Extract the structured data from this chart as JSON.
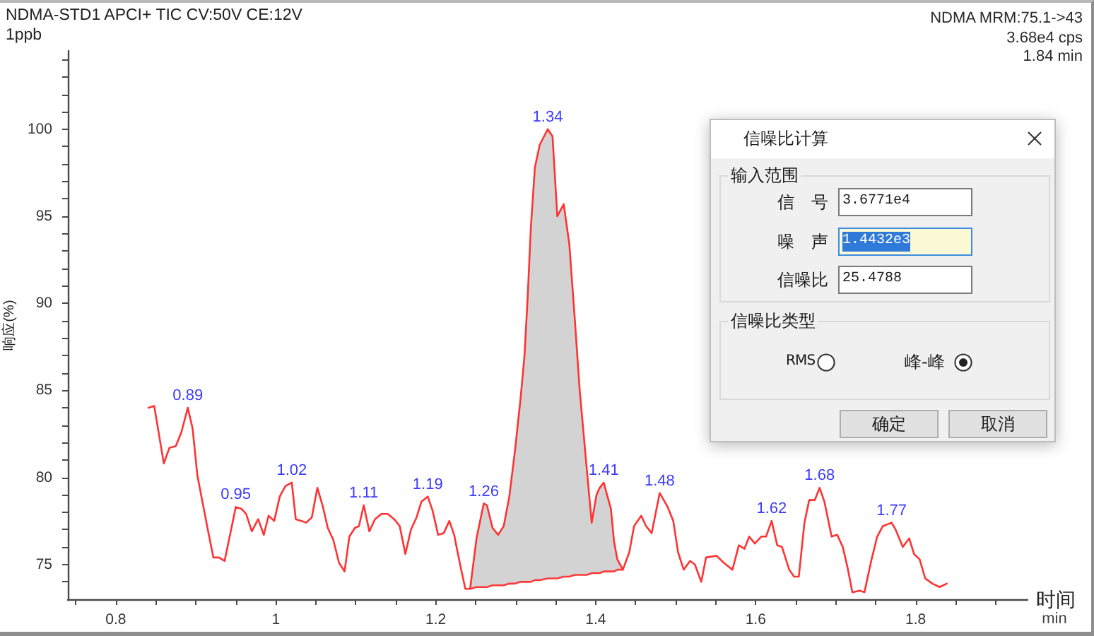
{
  "chart_data": {
    "type": "line",
    "title": "NDMA-STD1 APCI+ TIC CV:50V CE:12V",
    "subtitle": "1ppb",
    "xlabel": "时间",
    "ylabel": "响应(%)",
    "xlim": [
      0.74,
      1.94
    ],
    "ylim": [
      73,
      104.5
    ],
    "xticks": [
      {
        "value": 0.75,
        "label": null
      },
      0.8,
      {
        "value": 0.85,
        "label": null
      },
      {
        "value": 0.9,
        "label": null
      },
      {
        "value": 0.95,
        "label": null
      },
      1,
      {
        "value": 1.05,
        "label": null
      },
      {
        "value": 1.1,
        "label": null
      },
      {
        "value": 1.15,
        "label": null
      },
      1.2,
      {
        "value": 1.25,
        "label": null
      },
      {
        "value": 1.3,
        "label": null
      },
      {
        "value": 1.35,
        "label": null
      },
      1.4,
      {
        "value": 1.45,
        "label": null
      },
      {
        "value": 1.5,
        "label": null
      },
      {
        "value": 1.55,
        "label": null
      },
      1.6,
      {
        "value": 1.65,
        "label": null
      },
      {
        "value": 1.7,
        "label": null
      },
      {
        "value": 1.75,
        "label": null
      },
      1.8,
      {
        "value": 1.85,
        "label": null
      },
      {
        "value": 1.9,
        "label": null
      }
    ],
    "yticks": [
      {
        "value": 74,
        "label": null
      },
      75,
      {
        "value": 76,
        "label": null
      },
      {
        "value": 77,
        "label": null
      },
      {
        "value": 78,
        "label": null
      },
      {
        "value": 79,
        "label": null
      },
      80,
      {
        "value": 81,
        "label": null
      },
      {
        "value": 82,
        "label": null
      },
      {
        "value": 83,
        "label": null
      },
      {
        "value": 84,
        "label": null
      },
      85,
      {
        "value": 86,
        "label": null
      },
      {
        "value": 87,
        "label": null
      },
      {
        "value": 88,
        "label": null
      },
      {
        "value": 89,
        "label": null
      },
      90,
      {
        "value": 91,
        "label": null
      },
      {
        "value": 92,
        "label": null
      },
      {
        "value": 93,
        "label": null
      },
      {
        "value": 94,
        "label": null
      },
      95,
      {
        "value": 96,
        "label": null
      },
      {
        "value": 97,
        "label": null
      },
      {
        "value": 98,
        "label": null
      },
      {
        "value": 99,
        "label": null
      },
      100,
      {
        "value": 101,
        "label": null
      },
      {
        "value": 102,
        "label": null
      },
      {
        "value": 103,
        "label": null
      },
      {
        "value": 104,
        "label": null
      }
    ],
    "series": [
      {
        "type": "area",
        "color": "#d3d3d3",
        "x": [
          1.243,
          1.251,
          1.26,
          1.264,
          1.271,
          1.278,
          1.285,
          1.292,
          1.299,
          1.306,
          1.311,
          1.315,
          1.319,
          1.324,
          1.33,
          1.34,
          1.346,
          1.352,
          1.36,
          1.367,
          1.374,
          1.38,
          1.389,
          1.395,
          1.401,
          1.405,
          1.41,
          1.419,
          1.423,
          1.427,
          1.434
        ],
        "values": [
          73.6,
          76.5,
          78.5,
          78.4,
          77.1,
          76.7,
          77.2,
          78.9,
          81.5,
          84.5,
          87.0,
          90.4,
          94.4,
          97.8,
          99.1,
          100.0,
          99.6,
          95.0,
          95.7,
          93.4,
          89.0,
          85.0,
          80.4,
          77.4,
          79.0,
          79.4,
          79.7,
          78.2,
          76.3,
          75.3,
          74.7
        ]
      },
      {
        "color": "#ff3333",
        "x": [
          0.841,
          0.848,
          0.86,
          0.867,
          0.875,
          0.882,
          0.89,
          0.896,
          0.902,
          0.915,
          0.922,
          0.929,
          0.936,
          0.95,
          0.957,
          0.963,
          0.97,
          0.978,
          0.985,
          0.991,
          0.998,
          1.005,
          1.012,
          1.02,
          1.025,
          1.032,
          1.038,
          1.045,
          1.052,
          1.059,
          1.065,
          1.072,
          1.079,
          1.086,
          1.092,
          1.099,
          1.104,
          1.11,
          1.117,
          1.124,
          1.132,
          1.14,
          1.148,
          1.155,
          1.162,
          1.169,
          1.176,
          1.182,
          1.19,
          1.196,
          1.203,
          1.21,
          1.217,
          1.223,
          1.23,
          1.237,
          1.243,
          1.251,
          1.26,
          1.264,
          1.271,
          1.278,
          1.285,
          1.292,
          1.299,
          1.306,
          1.311,
          1.315,
          1.319,
          1.324,
          1.33,
          1.34,
          1.346,
          1.352,
          1.36,
          1.367,
          1.374,
          1.38,
          1.389,
          1.395,
          1.401,
          1.405,
          1.41,
          1.419,
          1.423,
          1.427,
          1.434,
          1.442,
          1.448,
          1.457,
          1.463,
          1.47,
          1.48,
          1.49,
          1.497,
          1.503,
          1.51,
          1.518,
          1.524,
          1.532,
          1.538,
          1.551,
          1.56,
          1.571,
          1.579,
          1.586,
          1.592,
          1.599,
          1.607,
          1.613,
          1.62,
          1.627,
          1.633,
          1.642,
          1.648,
          1.654,
          1.661,
          1.667,
          1.674,
          1.68,
          1.686,
          1.695,
          1.702,
          1.709,
          1.715,
          1.721,
          1.73,
          1.736,
          1.745,
          1.752,
          1.759,
          1.77,
          1.775,
          1.784,
          1.792,
          1.798,
          1.805,
          1.812,
          1.821,
          1.83,
          1.839
        ],
        "values": [
          84.0,
          84.1,
          80.8,
          81.7,
          81.8,
          82.6,
          84.0,
          82.8,
          80.1,
          77.0,
          75.4,
          75.4,
          75.2,
          78.3,
          78.2,
          77.9,
          76.9,
          77.6,
          76.7,
          77.8,
          77.5,
          78.9,
          79.5,
          79.7,
          77.6,
          77.5,
          77.4,
          77.7,
          79.4,
          78.3,
          77.1,
          76.4,
          75.1,
          74.6,
          76.6,
          77.1,
          77.2,
          78.4,
          76.9,
          77.6,
          77.9,
          77.9,
          77.6,
          77.2,
          75.6,
          77.0,
          77.7,
          78.6,
          78.9,
          78.1,
          76.7,
          76.8,
          77.5,
          76.7,
          75.1,
          73.6,
          73.6,
          76.5,
          78.5,
          78.4,
          77.1,
          76.7,
          77.2,
          78.9,
          81.5,
          84.5,
          87.0,
          90.4,
          94.4,
          97.8,
          99.1,
          100.0,
          99.6,
          95.0,
          95.7,
          93.4,
          89.0,
          85.0,
          80.4,
          77.4,
          79.0,
          79.4,
          79.7,
          78.2,
          76.3,
          75.3,
          74.7,
          75.7,
          77.2,
          77.8,
          77.2,
          76.8,
          79.1,
          78.3,
          77.5,
          75.7,
          74.7,
          75.2,
          75.0,
          74.0,
          75.4,
          75.5,
          75.1,
          74.7,
          76.1,
          75.9,
          76.6,
          76.2,
          76.6,
          76.6,
          77.5,
          76.1,
          76.0,
          74.7,
          74.3,
          74.3,
          77.4,
          78.7,
          78.7,
          79.4,
          78.6,
          76.6,
          76.7,
          76.0,
          74.8,
          73.4,
          73.5,
          73.4,
          75.3,
          76.6,
          77.2,
          77.4,
          77.0,
          76.0,
          76.5,
          75.6,
          75.3,
          74.2,
          73.9,
          73.7,
          73.9
        ]
      },
      {
        "color": "#ff3a3a",
        "x": [
          1.243,
          1.251,
          1.26,
          1.264,
          1.271,
          1.278,
          1.285,
          1.292,
          1.299,
          1.306,
          1.311,
          1.315,
          1.319,
          1.324,
          1.33,
          1.34,
          1.346,
          1.352,
          1.36,
          1.367,
          1.374,
          1.38,
          1.389,
          1.395,
          1.401,
          1.405,
          1.41,
          1.419,
          1.423,
          1.427,
          1.434
        ],
        "values": [
          73.6,
          73.7,
          73.7,
          73.7,
          73.8,
          73.8,
          73.8,
          73.9,
          73.9,
          74.0,
          74.0,
          74.0,
          74.0,
          74.1,
          74.1,
          74.2,
          74.2,
          74.2,
          74.3,
          74.3,
          74.4,
          74.4,
          74.4,
          74.5,
          74.5,
          74.5,
          74.6,
          74.6,
          74.6,
          74.7,
          74.7
        ]
      }
    ],
    "annotations": [
      {
        "text": "0.89",
        "x": 0.89,
        "y": 84.0
      },
      {
        "text": "0.95",
        "x": 0.95,
        "y": 78.3
      },
      {
        "text": "1.02",
        "x": 1.02,
        "y": 79.7
      },
      {
        "text": "1.11",
        "x": 1.11,
        "y": 78.4
      },
      {
        "text": "1.19",
        "x": 1.19,
        "y": 78.9
      },
      {
        "text": "1.26",
        "x": 1.26,
        "y": 78.5
      },
      {
        "text": "1.34",
        "x": 1.34,
        "y": 100.0
      },
      {
        "text": "1.41",
        "x": 1.41,
        "y": 79.7
      },
      {
        "text": "1.48",
        "x": 1.48,
        "y": 79.1
      },
      {
        "text": "1.62",
        "x": 1.62,
        "y": 77.5
      },
      {
        "text": "1.68",
        "x": 1.68,
        "y": 79.4
      },
      {
        "text": "1.77",
        "x": 1.77,
        "y": 77.4
      },
      "NDMA MRM:75.1->43",
      "3.68e4 cps",
      "1.84 min",
      "min",
      "信噪比计算",
      "输入范围",
      "信　号",
      "3.6771e4",
      "噪　声",
      "1.4432e3",
      "信噪比",
      "25.4788",
      "信噪比类型",
      "RMS",
      "峰-峰",
      "确定",
      "取消"
    ]
  }
}
